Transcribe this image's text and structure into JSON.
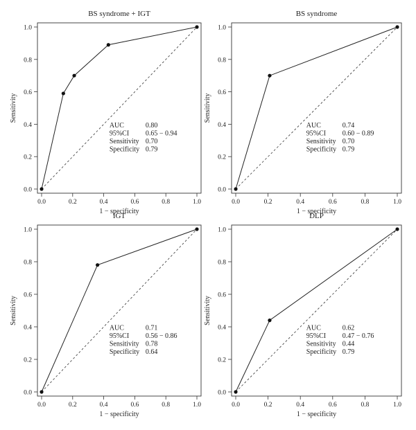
{
  "chart_data": [
    {
      "type": "line",
      "title": "BS syndrome + IGT",
      "xlabel": "1 − specificity",
      "ylabel": "Sensitivity",
      "xlim": [
        0,
        1
      ],
      "ylim": [
        0,
        1
      ],
      "xticks": [
        "0.0",
        "0.2",
        "0.4",
        "0.6",
        "0.8",
        "1.0"
      ],
      "yticks": [
        "0.0",
        "0.2",
        "0.4",
        "0.6",
        "0.8",
        "1.0"
      ],
      "series": [
        {
          "x": [
            0.0,
            0.14,
            0.21,
            0.43,
            1.0
          ],
          "y": [
            0.0,
            0.59,
            0.7,
            0.89,
            1.0
          ]
        }
      ],
      "reference_line": {
        "x": [
          0,
          1
        ],
        "y": [
          0,
          1
        ],
        "style": "dashed"
      },
      "stats": [
        {
          "label": "AUC",
          "value": "0.80"
        },
        {
          "label": "95%CI",
          "value": "0.65 − 0.94"
        },
        {
          "label": "Sensitivity",
          "value": "0.70"
        },
        {
          "label": "Specificity",
          "value": "0.79"
        }
      ]
    },
    {
      "type": "line",
      "title": "BS syndrome",
      "xlabel": "1 − specificity",
      "ylabel": "Sensitivity",
      "xlim": [
        0,
        1
      ],
      "ylim": [
        0,
        1
      ],
      "xticks": [
        "0.0",
        "0.2",
        "0.4",
        "0.6",
        "0.8",
        "1.0"
      ],
      "yticks": [
        "0.0",
        "0.2",
        "0.4",
        "0.6",
        "0.8",
        "1.0"
      ],
      "series": [
        {
          "x": [
            0.0,
            0.21,
            1.0
          ],
          "y": [
            0.0,
            0.7,
            1.0
          ]
        }
      ],
      "reference_line": {
        "x": [
          0,
          1
        ],
        "y": [
          0,
          1
        ],
        "style": "dashed"
      },
      "stats": [
        {
          "label": "AUC",
          "value": "0.74"
        },
        {
          "label": "95%CI",
          "value": "0.60 − 0.89"
        },
        {
          "label": "Sensitivity",
          "value": "0.70"
        },
        {
          "label": "Specificity",
          "value": "0.79"
        }
      ]
    },
    {
      "type": "line",
      "title": "IGT",
      "xlabel": "1 − specificity",
      "ylabel": "Sensitivity",
      "xlim": [
        0,
        1
      ],
      "ylim": [
        0,
        1
      ],
      "xticks": [
        "0.0",
        "0.2",
        "0.4",
        "0.6",
        "0.8",
        "1.0"
      ],
      "yticks": [
        "0.0",
        "0.2",
        "0.4",
        "0.6",
        "0.8",
        "1.0"
      ],
      "series": [
        {
          "x": [
            0.0,
            0.36,
            1.0
          ],
          "y": [
            0.0,
            0.78,
            1.0
          ]
        }
      ],
      "reference_line": {
        "x": [
          0,
          1
        ],
        "y": [
          0,
          1
        ],
        "style": "dashed"
      },
      "stats": [
        {
          "label": "AUC",
          "value": "0.71"
        },
        {
          "label": "95%CI",
          "value": "0.56 − 0.86"
        },
        {
          "label": "Sensitivity",
          "value": "0.78"
        },
        {
          "label": "Specificity",
          "value": "0.64"
        }
      ]
    },
    {
      "type": "line",
      "title": "DLP",
      "xlabel": "1 − specificity",
      "ylabel": "Sensitivity",
      "xlim": [
        0,
        1
      ],
      "ylim": [
        0,
        1
      ],
      "xticks": [
        "0.0",
        "0.2",
        "0.4",
        "0.6",
        "0.8",
        "1.0"
      ],
      "yticks": [
        "0.0",
        "0.2",
        "0.4",
        "0.6",
        "0.8",
        "1.0"
      ],
      "series": [
        {
          "x": [
            0.0,
            0.21,
            1.0
          ],
          "y": [
            0.0,
            0.44,
            1.0
          ]
        }
      ],
      "reference_line": {
        "x": [
          0,
          1
        ],
        "y": [
          0,
          1
        ],
        "style": "dashed"
      },
      "stats": [
        {
          "label": "AUC",
          "value": "0.62"
        },
        {
          "label": "95%CI",
          "value": "0.47 − 0.76"
        },
        {
          "label": "Sensitivity",
          "value": "0.44"
        },
        {
          "label": "Specificity",
          "value": "0.79"
        }
      ]
    }
  ]
}
